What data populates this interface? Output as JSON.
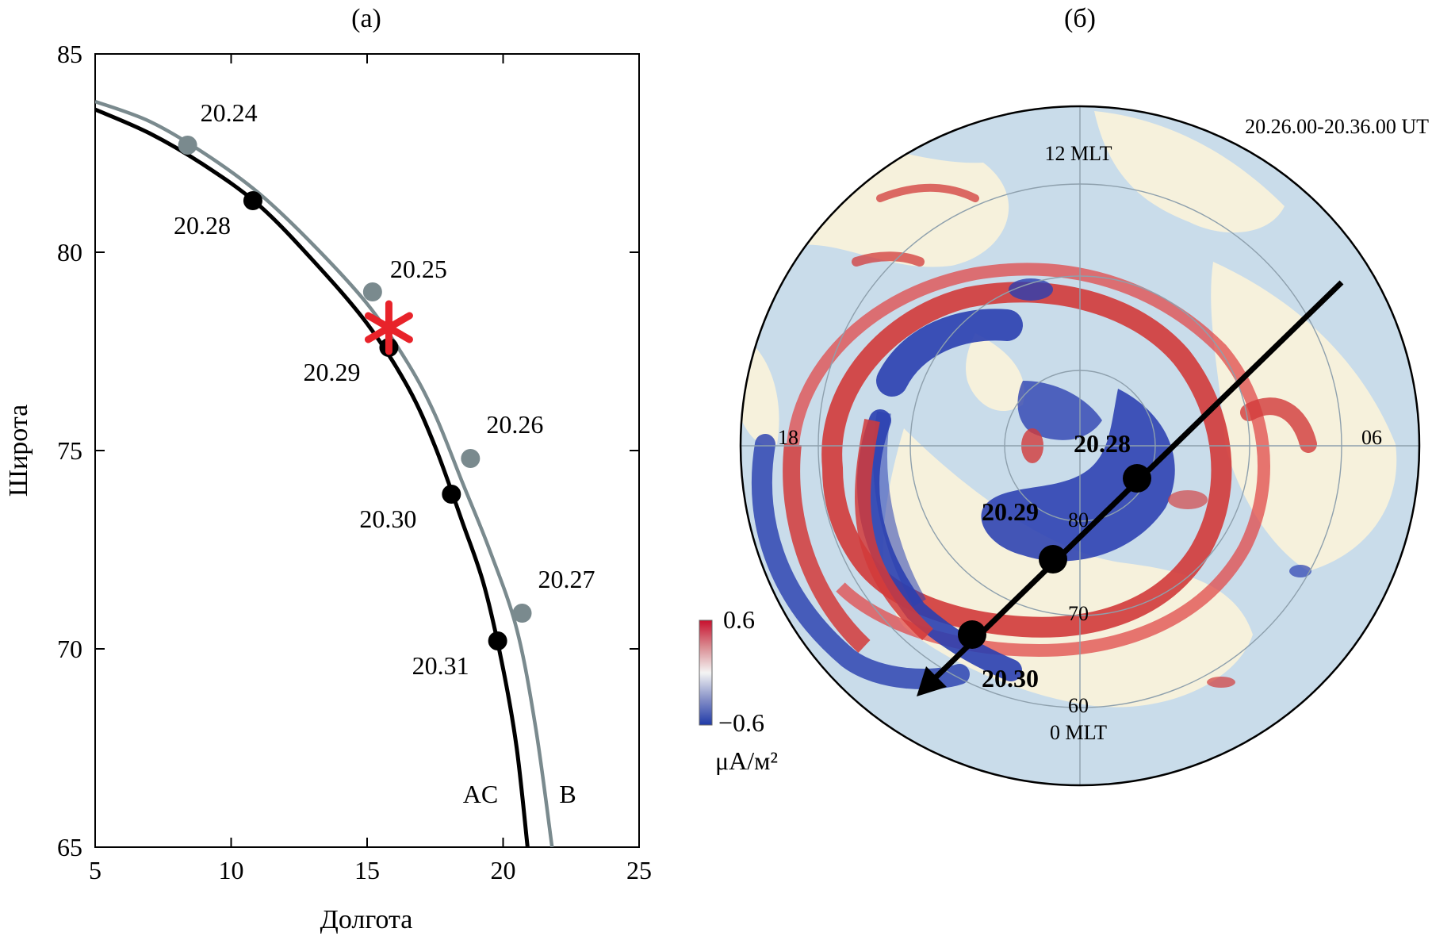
{
  "chart_data": [
    {
      "panel_label": "(a)",
      "type": "line",
      "xlabel": "Долгота",
      "ylabel": "Широта",
      "xlim": [
        5,
        25
      ],
      "ylim": [
        65,
        85
      ],
      "xticks": [
        "5",
        "10",
        "15",
        "20",
        "25"
      ],
      "yticks": [
        "65",
        "70",
        "75",
        "80",
        "85"
      ],
      "series": [
        {
          "name": "AC",
          "color": "#000000",
          "curve": [
            [
              5.0,
              83.6
            ],
            [
              7.0,
              83.0
            ],
            [
              9.0,
              82.2
            ],
            [
              11.0,
              81.2
            ],
            [
              13.0,
              79.8
            ],
            [
              15.0,
              78.2
            ],
            [
              16.5,
              76.6
            ],
            [
              17.5,
              75.1
            ],
            [
              18.5,
              73.2
            ],
            [
              19.3,
              71.6
            ],
            [
              20.0,
              69.5
            ],
            [
              20.5,
              67.5
            ],
            [
              20.9,
              65.0
            ]
          ],
          "points": [
            {
              "label": "20.28",
              "x": 10.8,
              "y": 81.3
            },
            {
              "label": "20.29",
              "x": 15.8,
              "y": 77.6
            },
            {
              "label": "20.30",
              "x": 18.1,
              "y": 73.9
            },
            {
              "label": "20.31",
              "x": 19.8,
              "y": 70.2
            }
          ]
        },
        {
          "name": "B",
          "color": "#7a8a8e",
          "curve": [
            [
              5.0,
              83.8
            ],
            [
              7.0,
              83.3
            ],
            [
              9.0,
              82.5
            ],
            [
              11.0,
              81.5
            ],
            [
              13.0,
              80.2
            ],
            [
              15.0,
              78.7
            ],
            [
              16.5,
              77.2
            ],
            [
              17.5,
              75.9
            ],
            [
              18.5,
              74.2
            ],
            [
              19.5,
              72.5
            ],
            [
              20.5,
              70.5
            ],
            [
              21.2,
              68.0
            ],
            [
              21.8,
              65.0
            ]
          ],
          "points": [
            {
              "label": "20.24",
              "x": 8.4,
              "y": 82.7
            },
            {
              "label": "20.25",
              "x": 15.2,
              "y": 79.0
            },
            {
              "label": "20.26",
              "x": 18.8,
              "y": 74.8
            },
            {
              "label": "20.27",
              "x": 20.7,
              "y": 70.9
            }
          ]
        }
      ],
      "annotations": [
        {
          "type": "star",
          "color": "#e8232a",
          "x": 15.8,
          "y": 78.1
        }
      ]
    },
    {
      "panel_label": "(б)",
      "type": "heatmap",
      "time_range": "20.26.00-20.36.00 UT",
      "mlt_labels": {
        "top": "12 MLT",
        "bottom": "0 MLT",
        "left": "18",
        "right": "06"
      },
      "latitude_labels": [
        "80",
        "70",
        "60"
      ],
      "colorbar": {
        "max": "0.6",
        "min": "−0.6",
        "unit": "μA/м²",
        "colors": [
          "#c8102e",
          "#ffffff",
          "#1f3aa8"
        ]
      },
      "track_points": [
        {
          "label": "20.28"
        },
        {
          "label": "20.29"
        },
        {
          "label": "20.30"
        }
      ]
    }
  ]
}
